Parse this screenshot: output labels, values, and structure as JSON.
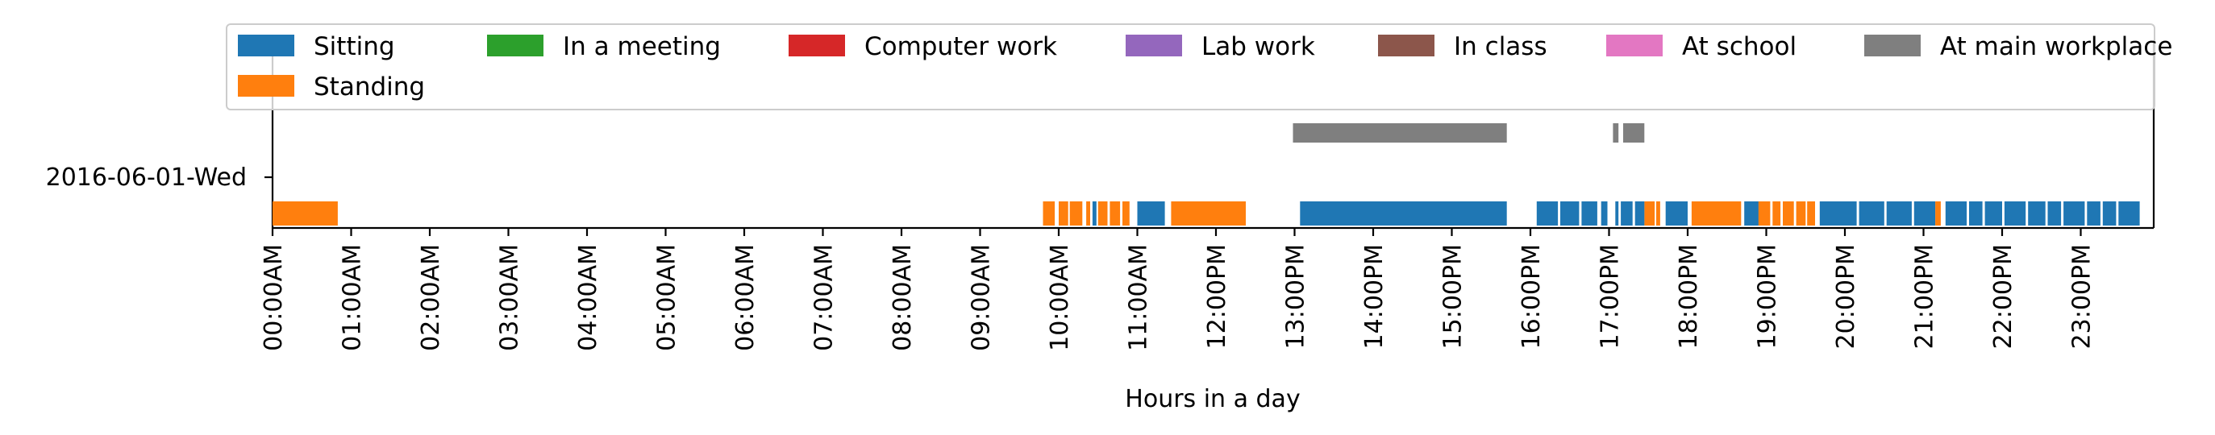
{
  "chart_data": {
    "type": "timeline",
    "title": "",
    "xlabel": "Hours in a day",
    "ylabel": "",
    "xlim": [
      0,
      24
    ],
    "x_ticks": [
      {
        "value": 0,
        "label": "00:00AM"
      },
      {
        "value": 1,
        "label": "01:00AM"
      },
      {
        "value": 2,
        "label": "02:00AM"
      },
      {
        "value": 3,
        "label": "03:00AM"
      },
      {
        "value": 4,
        "label": "04:00AM"
      },
      {
        "value": 5,
        "label": "05:00AM"
      },
      {
        "value": 6,
        "label": "06:00AM"
      },
      {
        "value": 7,
        "label": "07:00AM"
      },
      {
        "value": 8,
        "label": "08:00AM"
      },
      {
        "value": 9,
        "label": "09:00AM"
      },
      {
        "value": 10,
        "label": "10:00AM"
      },
      {
        "value": 11,
        "label": "11:00AM"
      },
      {
        "value": 12,
        "label": "12:00PM"
      },
      {
        "value": 13,
        "label": "13:00PM"
      },
      {
        "value": 14,
        "label": "14:00PM"
      },
      {
        "value": 15,
        "label": "15:00PM"
      },
      {
        "value": 16,
        "label": "16:00PM"
      },
      {
        "value": 17,
        "label": "17:00PM"
      },
      {
        "value": 18,
        "label": "18:00PM"
      },
      {
        "value": 19,
        "label": "19:00PM"
      },
      {
        "value": 20,
        "label": "20:00PM"
      },
      {
        "value": 21,
        "label": "21:00PM"
      },
      {
        "value": 22,
        "label": "22:00PM"
      },
      {
        "value": 23,
        "label": "23:00PM"
      }
    ],
    "y_tick_label": "2016-06-01-Wed",
    "legend_position": "top",
    "grid": false,
    "series": [
      {
        "name": "Sitting",
        "color": "#1f77b4",
        "row": "activity",
        "intervals": [
          [
            10.43,
            10.48
          ],
          [
            11.0,
            11.35
          ],
          [
            13.07,
            15.7
          ],
          [
            16.08,
            16.35
          ],
          [
            16.38,
            16.62
          ],
          [
            16.65,
            16.85
          ],
          [
            16.9,
            16.98
          ],
          [
            17.08,
            17.12
          ],
          [
            17.15,
            17.3
          ],
          [
            17.33,
            17.45
          ],
          [
            17.72,
            18.0
          ],
          [
            18.72,
            18.97
          ],
          [
            19.68,
            20.15
          ],
          [
            20.18,
            20.5
          ],
          [
            20.53,
            20.85
          ],
          [
            20.88,
            21.15
          ],
          [
            21.28,
            21.55
          ],
          [
            21.58,
            21.75
          ],
          [
            21.78,
            22.0
          ],
          [
            22.03,
            22.3
          ],
          [
            22.33,
            22.55
          ],
          [
            22.58,
            22.75
          ],
          [
            22.78,
            23.05
          ],
          [
            23.08,
            23.25
          ],
          [
            23.28,
            23.45
          ],
          [
            23.48,
            23.75
          ]
        ]
      },
      {
        "name": "Standing",
        "color": "#ff7f0e",
        "row": "activity",
        "intervals": [
          [
            0.0,
            0.83
          ],
          [
            9.8,
            9.95
          ],
          [
            10.0,
            10.12
          ],
          [
            10.14,
            10.3
          ],
          [
            10.35,
            10.4
          ],
          [
            10.5,
            10.62
          ],
          [
            10.65,
            10.78
          ],
          [
            10.81,
            10.9
          ],
          [
            11.43,
            12.38
          ],
          [
            17.45,
            17.58
          ],
          [
            17.6,
            17.65
          ],
          [
            18.05,
            18.68
          ],
          [
            18.9,
            19.05
          ],
          [
            19.08,
            19.18
          ],
          [
            19.21,
            19.35
          ],
          [
            19.38,
            19.5
          ],
          [
            19.52,
            19.62
          ],
          [
            21.15,
            21.22
          ]
        ]
      },
      {
        "name": "In a meeting",
        "color": "#2ca02c",
        "row": "activity",
        "intervals": []
      },
      {
        "name": "Computer work",
        "color": "#d62728",
        "row": "activity",
        "intervals": []
      },
      {
        "name": "Lab work",
        "color": "#9467bd",
        "row": "activity",
        "intervals": []
      },
      {
        "name": "In class",
        "color": "#8c564b",
        "row": "activity",
        "intervals": []
      },
      {
        "name": "At school",
        "color": "#e377c2",
        "row": "location",
        "intervals": []
      },
      {
        "name": "At main workplace",
        "color": "#7f7f7f",
        "row": "location",
        "intervals": [
          [
            12.98,
            15.7
          ],
          [
            17.05,
            17.12
          ],
          [
            17.18,
            17.45
          ]
        ]
      }
    ],
    "legend_order": [
      "Sitting",
      "In a meeting",
      "Computer work",
      "Lab work",
      "In class",
      "At school",
      "At main workplace",
      "Standing"
    ]
  }
}
